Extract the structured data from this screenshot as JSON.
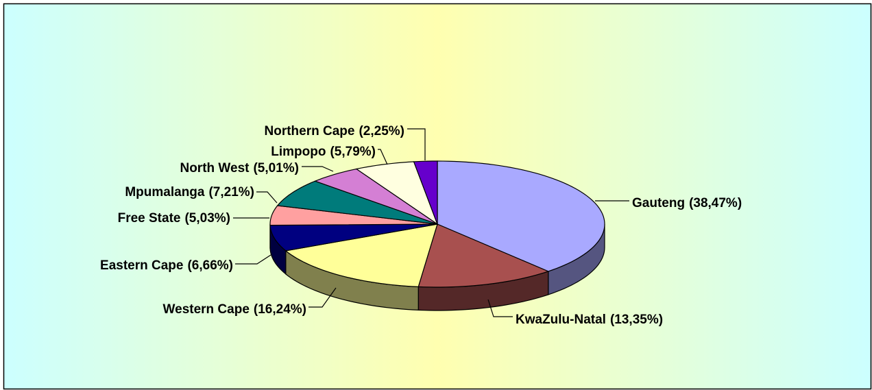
{
  "chart_data": {
    "type": "pie",
    "categories": [
      "Gauteng",
      "KwaZulu-Natal",
      "Western Cape",
      "Eastern Cape",
      "Free State",
      "Mpumalanga",
      "North West",
      "Limpopo",
      "Northern Cape"
    ],
    "values": [
      38.47,
      13.35,
      16.24,
      6.66,
      5.03,
      7.21,
      5.01,
      5.79,
      2.25
    ],
    "value_labels": [
      "(38,47%)",
      "(13,35%)",
      "(16,24%)",
      "(6,66%)",
      "(5,03%)",
      "(7,21%)",
      "(5,01%)",
      "(5,79%)",
      "(2,25%)"
    ],
    "colors": [
      "#a9a9ff",
      "#a8504f",
      "#ffff99",
      "#000080",
      "#ffa0a0",
      "#007b7b",
      "#d47fd4",
      "#ffffe0",
      "#6600cc"
    ],
    "three_d": true
  }
}
